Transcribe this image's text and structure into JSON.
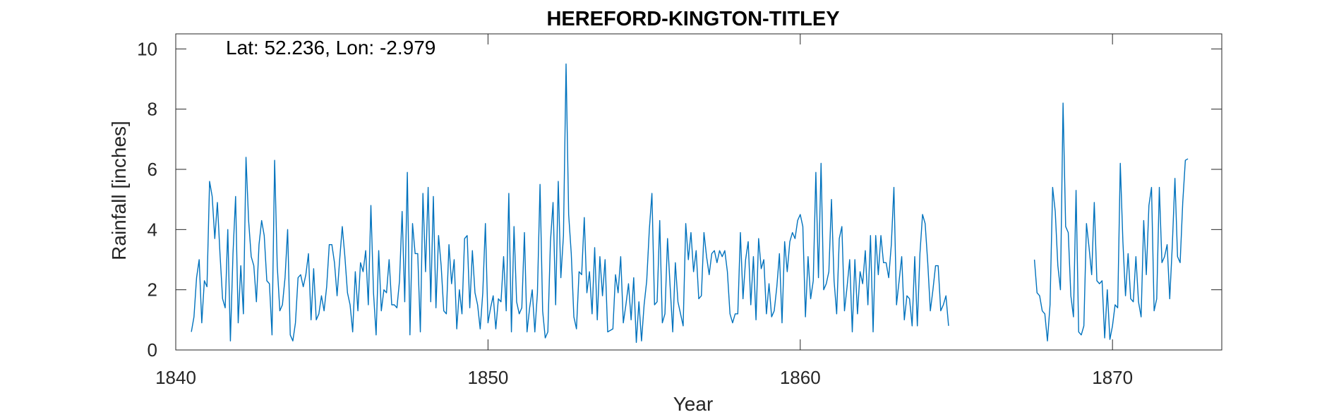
{
  "chart_data": {
    "type": "line",
    "title": "HEREFORD-KINGTON-TITLEY",
    "xlabel": "Year",
    "ylabel": "Rainfall [inches]",
    "annotation": "Lat: 52.236, Lon: -2.979",
    "xlim": [
      1840,
      1873.5
    ],
    "ylim": [
      0,
      10.5
    ],
    "xticks": [
      1840,
      1850,
      1860,
      1870
    ],
    "yticks": [
      0,
      2,
      4,
      6,
      8,
      10
    ],
    "grid": false,
    "line_color": "#0072BD",
    "series": [
      {
        "start_year": 1840.5,
        "values": [
          0.6,
          1.1,
          2.4,
          3.0,
          0.9,
          2.3,
          2.1,
          5.6,
          5.1,
          3.7,
          4.9,
          3.2,
          1.7,
          1.4,
          4.0,
          0.3,
          3.2,
          5.1,
          0.9,
          2.8,
          1.2,
          6.4,
          4.3,
          3.1,
          2.8,
          1.6,
          3.5,
          4.3,
          3.8,
          2.3,
          2.2,
          0.5,
          6.3,
          2.8,
          1.3,
          1.5,
          2.4,
          4.0,
          0.5,
          0.3,
          0.9,
          2.4,
          2.5,
          2.1,
          2.5,
          3.2,
          1.0,
          2.7,
          1.0,
          1.2,
          1.8,
          1.3,
          2.1,
          3.5,
          3.5,
          2.9,
          1.8,
          3.0,
          4.1,
          3.1,
          1.9,
          1.5,
          0.6,
          2.6,
          1.3,
          2.9,
          2.6,
          3.3,
          1.5,
          4.8,
          1.9,
          0.5,
          3.3,
          1.3,
          2.0,
          1.9,
          3.0,
          1.5,
          1.5,
          1.4,
          2.3,
          4.6,
          1.6,
          5.9,
          0.5,
          4.2,
          3.2,
          3.2,
          0.6,
          5.2,
          2.6,
          5.4,
          1.6,
          5.1,
          1.4,
          3.8,
          2.8,
          1.3,
          1.2,
          3.5,
          2.2,
          3.0,
          0.7,
          2.0,
          1.2,
          3.7,
          3.8,
          1.4,
          3.3,
          1.9,
          1.5,
          0.7,
          1.9,
          4.2,
          0.9,
          1.4,
          1.8,
          0.7,
          1.7,
          1.6,
          3.1,
          1.3,
          5.2,
          0.6,
          4.1,
          1.6,
          1.2,
          1.4,
          3.9,
          0.6,
          1.4,
          2.0,
          0.6,
          1.9,
          5.5,
          1.3,
          0.4,
          0.6,
          3.6,
          4.9,
          1.5,
          5.6,
          2.4,
          3.8,
          9.5,
          4.5,
          3.2,
          1.1,
          0.7,
          2.6,
          2.5,
          4.4,
          1.9,
          2.6,
          1.2,
          3.4,
          1.0,
          3.1,
          1.8,
          3.0,
          0.6,
          0.65,
          0.7,
          2.5,
          1.9,
          3.1,
          0.9,
          1.5,
          2.2,
          1.0,
          2.4,
          0.25,
          1.6,
          0.3,
          1.5,
          2.3,
          4.0,
          5.2,
          1.5,
          1.6,
          4.3,
          0.9,
          1.2,
          3.7,
          2.1,
          0.6,
          2.9,
          1.6,
          1.2,
          0.8,
          4.2,
          3.0,
          3.9,
          2.6,
          3.3,
          1.7,
          1.8,
          3.9,
          3.1,
          2.5,
          3.2,
          3.3,
          2.9,
          3.3,
          3.1,
          3.3,
          2.6,
          1.2,
          0.9,
          1.2,
          1.2,
          3.9,
          1.7,
          3.0,
          3.6,
          1.5,
          3.1,
          1.0,
          3.7,
          2.7,
          3.0,
          1.2,
          2.2,
          1.1,
          1.3,
          2.1,
          3.2,
          0.9,
          3.6,
          2.6,
          3.6,
          3.9,
          3.7,
          4.3,
          4.5,
          4.1,
          1.1,
          3.1,
          1.7,
          2.3,
          5.9,
          2.4,
          6.2,
          2.0,
          2.2,
          2.6,
          5.0,
          2.3,
          1.2,
          3.7,
          4.1,
          1.3,
          2.1,
          3.0,
          0.6,
          3.0,
          1.2,
          2.6,
          2.2,
          3.3,
          1.5,
          3.8,
          0.6,
          3.8,
          2.5,
          3.8,
          2.9,
          2.9,
          2.4,
          3.5,
          5.4,
          1.5,
          2.3,
          3.1,
          1.0,
          1.8,
          1.7,
          0.8,
          3.1,
          0.8,
          3.2,
          4.5,
          4.2,
          2.9,
          1.3,
          2.0,
          2.8,
          2.8,
          1.3,
          1.5,
          1.8,
          0.8
        ]
      },
      {
        "start_year": 1867.5,
        "values": [
          3.0,
          1.9,
          1.8,
          1.3,
          1.2,
          0.3,
          1.5,
          5.4,
          4.6,
          2.8,
          2.0,
          8.2,
          4.1,
          3.9,
          1.8,
          1.1,
          5.3,
          0.6,
          0.5,
          0.8,
          4.2,
          3.4,
          2.5,
          4.9,
          2.3,
          2.2,
          2.3,
          0.4,
          2.0,
          0.35,
          0.8,
          1.5,
          1.4,
          6.2,
          3.6,
          1.8,
          3.2,
          1.7,
          1.6,
          3.1,
          1.6,
          1.1,
          4.3,
          2.5,
          4.8,
          5.4,
          1.3,
          1.7,
          5.4,
          2.9,
          3.1,
          3.5,
          1.7,
          3.5,
          5.7,
          3.1,
          2.9,
          4.9,
          6.3,
          6.35
        ]
      }
    ]
  }
}
